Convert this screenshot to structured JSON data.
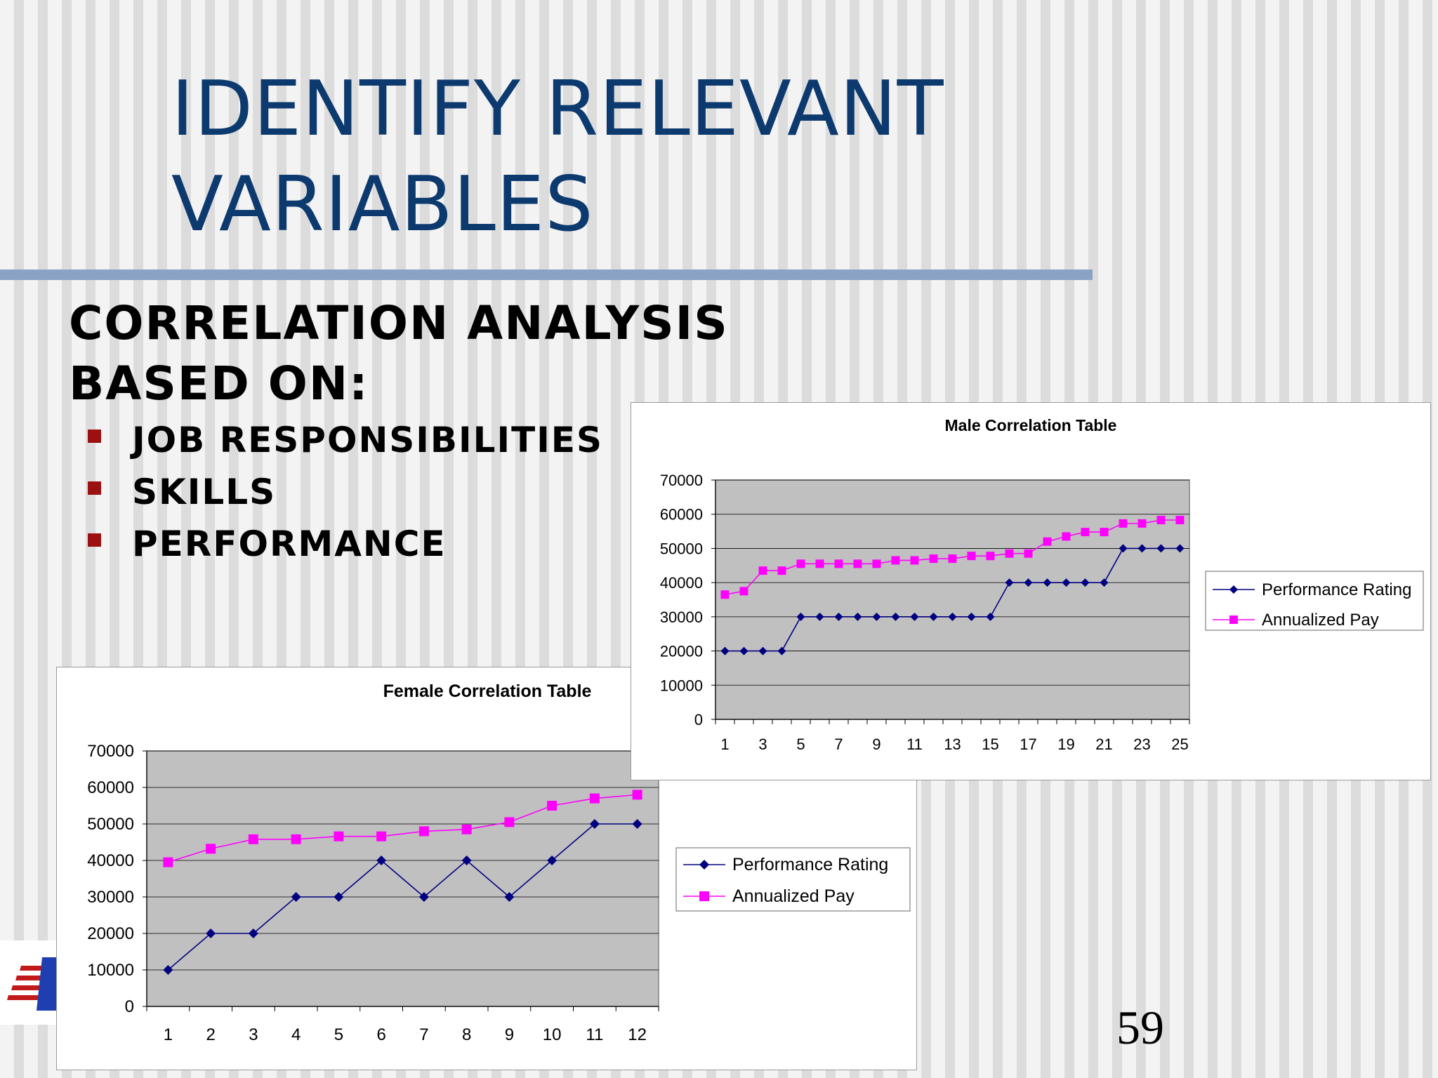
{
  "slide": {
    "title_line1": "IDENTIFY RELEVANT",
    "title_line2": "VARIABLES",
    "heading_line1": "CORRELATION ANALYSIS",
    "heading_line2": "BASED ON:",
    "bullets": [
      "JOB RESPONSIBILITIES",
      "SKILLS",
      "PERFORMANCE"
    ],
    "page_number": "59",
    "colors": {
      "title": "#0d3a6e",
      "rule": "#8aa2c6",
      "bullet": "#9b1010",
      "plot_bg": "#c0c0c0",
      "series_1": "#000080",
      "series_2": "#ff00ff"
    }
  },
  "chart_data": [
    {
      "type": "line",
      "title": "Female Correlation Table",
      "categories": [
        "1",
        "2",
        "3",
        "4",
        "5",
        "6",
        "7",
        "8",
        "9",
        "10",
        "11",
        "12"
      ],
      "series": [
        {
          "name": "Performance Rating",
          "color": "#000080",
          "marker": "diamond",
          "values": [
            10000,
            20000,
            20000,
            30000,
            30000,
            40000,
            30000,
            40000,
            30000,
            40000,
            50000,
            50000
          ]
        },
        {
          "name": "Annualized Pay",
          "color": "#ff00ff",
          "marker": "square",
          "values": [
            39500,
            43200,
            45800,
            45800,
            46600,
            46600,
            48000,
            48500,
            50500,
            55000,
            57000,
            58000
          ]
        }
      ],
      "yticks": [
        "0",
        "10000",
        "20000",
        "30000",
        "40000",
        "50000",
        "60000",
        "70000"
      ],
      "ylim": [
        0,
        70000
      ],
      "grid": true,
      "legend": "right"
    },
    {
      "type": "line",
      "title": "Male Correlation Table",
      "categories": [
        "1",
        "2",
        "3",
        "4",
        "5",
        "6",
        "7",
        "8",
        "9",
        "10",
        "11",
        "12",
        "13",
        "14",
        "15",
        "16",
        "17",
        "18",
        "19",
        "20",
        "21",
        "22",
        "23",
        "24",
        "25"
      ],
      "xtick_labels": [
        "1",
        "3",
        "5",
        "7",
        "9",
        "11",
        "13",
        "15",
        "17",
        "19",
        "21",
        "23",
        "25"
      ],
      "series": [
        {
          "name": "Performance Rating",
          "color": "#000080",
          "marker": "diamond",
          "values": [
            20000,
            20000,
            20000,
            20000,
            30000,
            30000,
            30000,
            30000,
            30000,
            30000,
            30000,
            30000,
            30000,
            30000,
            30000,
            40000,
            40000,
            40000,
            40000,
            40000,
            40000,
            50000,
            50000,
            50000,
            50000
          ]
        },
        {
          "name": "Annualized Pay",
          "color": "#ff00ff",
          "marker": "square",
          "values": [
            36500,
            37500,
            43500,
            43500,
            45500,
            45500,
            45500,
            45500,
            45500,
            46500,
            46500,
            47000,
            47000,
            47800,
            47800,
            48500,
            48500,
            52000,
            53500,
            54800,
            54800,
            57300,
            57300,
            58300,
            58300
          ]
        }
      ],
      "yticks": [
        "0",
        "10000",
        "20000",
        "30000",
        "40000",
        "50000",
        "60000",
        "70000"
      ],
      "ylim": [
        0,
        70000
      ],
      "grid": true,
      "legend": "right"
    }
  ]
}
